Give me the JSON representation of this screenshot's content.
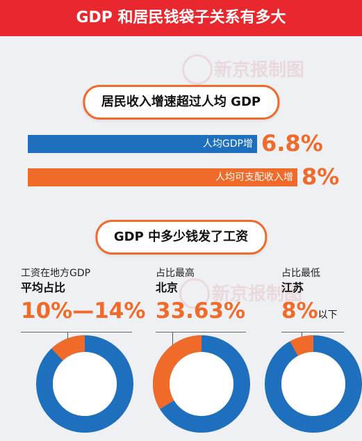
{
  "header": {
    "title": "GDP 和居民钱袋子关系有多大"
  },
  "watermark": {
    "text": "新京报制图"
  },
  "section1": {
    "title": "居民收入增速超过人均 GDP",
    "bars": [
      {
        "label": "人均GDP增",
        "value_text": "6.8%",
        "value": 6.8,
        "color": "#1f6fbf"
      },
      {
        "label": "人均可支配收入增",
        "value_text": "8%",
        "value": 8,
        "color": "#f06a2a"
      }
    ]
  },
  "section2": {
    "title": "GDP 中多少钱发了工资",
    "columns": [
      {
        "label": "工资在地方GDP",
        "sublabel": "平均占比",
        "value_text": "10%—14%",
        "suffix": ""
      },
      {
        "label": "占比最高",
        "sublabel": "北京",
        "value_text": "33.63%",
        "suffix": ""
      },
      {
        "label": "占比最低",
        "sublabel": "江苏",
        "value_text": "8%",
        "suffix": "以下"
      }
    ]
  },
  "chart_data": [
    {
      "type": "bar",
      "categories": [
        "人均GDP增",
        "人均可支配收入增"
      ],
      "values": [
        6.8,
        8
      ],
      "title": "居民收入增速超过人均 GDP",
      "colors": [
        "#1f6fbf",
        "#f06a2a"
      ]
    },
    {
      "type": "pie",
      "title": "GDP 中多少钱发了工资",
      "charts": [
        {
          "name": "工资在地方GDP平均占比",
          "value_range": [
            10,
            14
          ],
          "value": 12
        },
        {
          "name": "北京",
          "value": 33.63
        },
        {
          "name": "江苏",
          "value": 8,
          "note": "以下"
        }
      ],
      "colors": {
        "share": "#f06a2a",
        "rest": "#1f6fbf"
      }
    }
  ]
}
